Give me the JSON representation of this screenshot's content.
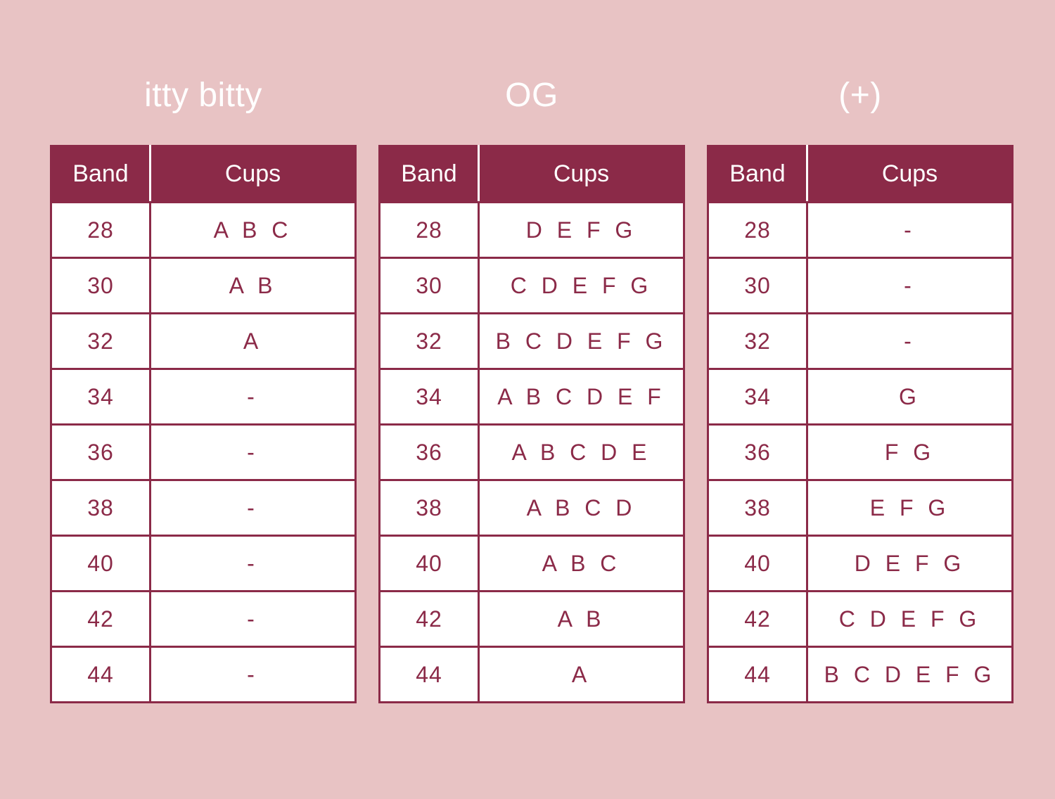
{
  "groups": [
    {
      "title": "itty bitty",
      "headers": {
        "band": "Band",
        "cups": "Cups"
      },
      "rows": [
        {
          "band": "28",
          "cups": "A B C"
        },
        {
          "band": "30",
          "cups": "A B"
        },
        {
          "band": "32",
          "cups": "A"
        },
        {
          "band": "34",
          "cups": "-"
        },
        {
          "band": "36",
          "cups": "-"
        },
        {
          "band": "38",
          "cups": "-"
        },
        {
          "band": "40",
          "cups": "-"
        },
        {
          "band": "42",
          "cups": "-"
        },
        {
          "band": "44",
          "cups": "-"
        }
      ]
    },
    {
      "title": "OG",
      "headers": {
        "band": "Band",
        "cups": "Cups"
      },
      "rows": [
        {
          "band": "28",
          "cups": "D E F G"
        },
        {
          "band": "30",
          "cups": "C D E F G"
        },
        {
          "band": "32",
          "cups": "B C D E F G"
        },
        {
          "band": "34",
          "cups": "A B C D E F"
        },
        {
          "band": "36",
          "cups": "A B C D E"
        },
        {
          "band": "38",
          "cups": "A B C D"
        },
        {
          "band": "40",
          "cups": "A B C"
        },
        {
          "band": "42",
          "cups": "A B"
        },
        {
          "band": "44",
          "cups": "A"
        }
      ]
    },
    {
      "title": "(+)",
      "headers": {
        "band": "Band",
        "cups": "Cups"
      },
      "rows": [
        {
          "band": "28",
          "cups": "-"
        },
        {
          "band": "30",
          "cups": "-"
        },
        {
          "band": "32",
          "cups": "-"
        },
        {
          "band": "34",
          "cups": "G"
        },
        {
          "band": "36",
          "cups": "F G"
        },
        {
          "band": "38",
          "cups": "E F G"
        },
        {
          "band": "40",
          "cups": "D E F G"
        },
        {
          "band": "42",
          "cups": "C D E F G"
        },
        {
          "band": "44",
          "cups": "B C D E F G"
        }
      ]
    }
  ],
  "colors": {
    "background": "#e8c3c4",
    "accent": "#8b2a48",
    "cell_background": "#ffffff",
    "title_text": "#ffffff"
  }
}
